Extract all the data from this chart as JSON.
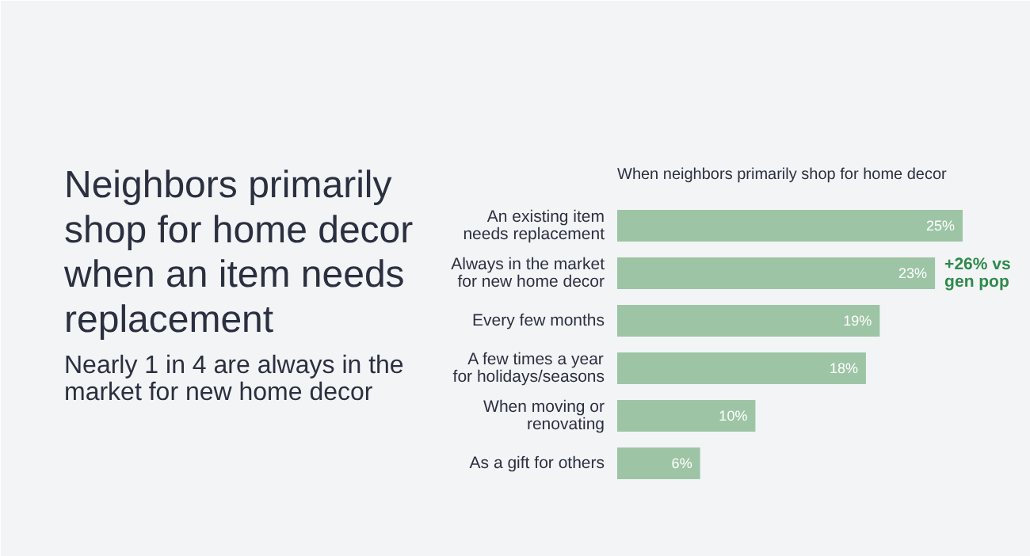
{
  "chart_data": {
    "type": "bar",
    "orientation": "horizontal",
    "title": "Neighbors primarily shop for home decor when an item needs replacement",
    "subtitle": "Nearly 1 in 4 are always in the market for new home decor",
    "categories": [
      "An existing item needs replacement",
      "Always in the market for new home decor",
      "Every few months",
      "A few times a year for holidays/seasons",
      "When moving or renovating",
      "As a gift for others"
    ],
    "values": [
      25,
      23,
      19,
      18,
      10,
      6
    ],
    "value_labels": [
      "25%",
      "23%",
      "19%",
      "18%",
      "10%",
      "6%"
    ],
    "color": "#9dc5a5",
    "annotations": [
      "When neighbors primarily shop for home decor",
      {
        "text": "+26% vs gen pop",
        "x": 23,
        "y": "Always in the market for new home decor"
      }
    ]
  }
}
